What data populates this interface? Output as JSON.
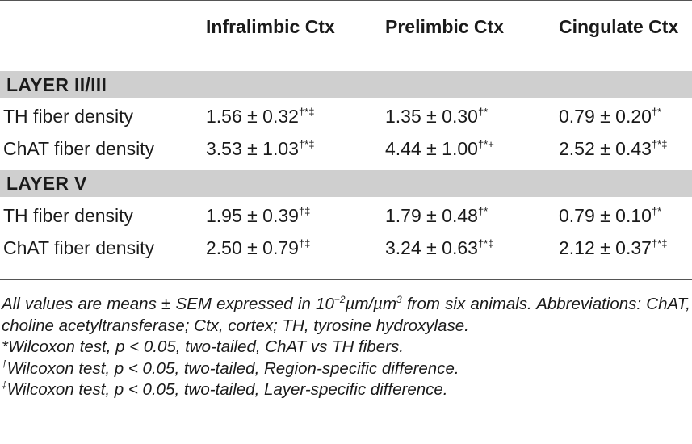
{
  "table": {
    "columns": [
      "Infralimbic Ctx",
      "Prelimbic Ctx",
      "Cingulate Ctx"
    ],
    "sections": [
      {
        "label": "LAYER II/III",
        "rows": [
          {
            "label": "TH fiber density",
            "cells": [
              {
                "value": "1.56 ± 0.32",
                "marks": "†*‡"
              },
              {
                "value": "1.35 ± 0.30",
                "marks": "†*"
              },
              {
                "value": "0.79 ± 0.20",
                "marks": "†*"
              }
            ]
          },
          {
            "label": "ChAT fiber density",
            "cells": [
              {
                "value": "3.53 ± 1.03",
                "marks": "†*‡"
              },
              {
                "value": "4.44 ± 1.00",
                "marks": "†*+"
              },
              {
                "value": "2.52 ± 0.43",
                "marks": "†*‡"
              }
            ]
          }
        ]
      },
      {
        "label": "LAYER V",
        "rows": [
          {
            "label": "TH fiber density",
            "cells": [
              {
                "value": "1.95 ± 0.39",
                "marks": "†‡"
              },
              {
                "value": "1.79 ± 0.48",
                "marks": "†*"
              },
              {
                "value": "0.79 ± 0.10",
                "marks": "†*"
              }
            ]
          },
          {
            "label": "ChAT fiber density",
            "cells": [
              {
                "value": "2.50 ± 0.79",
                "marks": "†‡"
              },
              {
                "value": "3.24 ± 0.63",
                "marks": "†*‡"
              },
              {
                "value": "2.12 ± 0.37",
                "marks": "†*‡"
              }
            ]
          }
        ]
      }
    ]
  },
  "footnotes": {
    "values_note_before": "All values are means ± SEM expressed in 10",
    "values_note_exponent": "−2",
    "values_note_middle": "µm/µm",
    "values_note_exponent2": "3",
    "values_note_after": " from six animals. Abbreviations: ChAT, choline acetyltransferase; Ctx, cortex; TH, tyrosine hydroxylase.",
    "star_note": "*Wilcoxon test, p < 0.05, two-tailed, ChAT vs TH fibers.",
    "dagger_mark": "†",
    "dagger_note": "Wilcoxon test, p < 0.05, two-tailed, Region-specific difference.",
    "ddagger_mark": "‡",
    "ddagger_note": "Wilcoxon test, p < 0.05, two-tailed, Layer-specific difference."
  }
}
